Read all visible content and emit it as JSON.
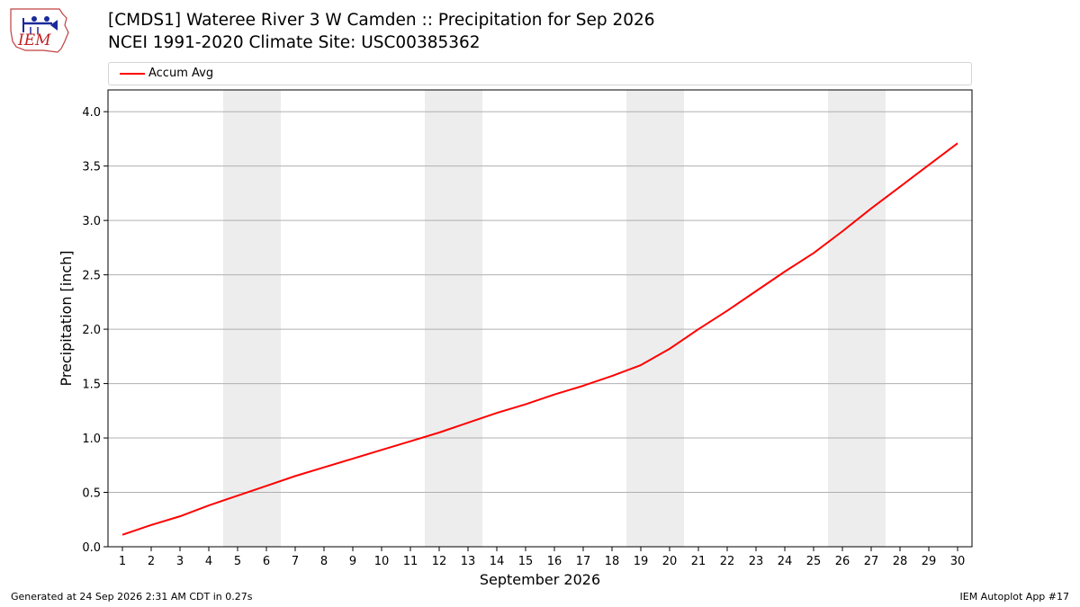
{
  "header": {
    "title_line1": "[CMDS1] Wateree River 3 W Camden :: Precipitation for Sep 2026",
    "title_line2": "NCEI 1991-2020 Climate Site: USC00385362"
  },
  "logo": {
    "text": "IEM",
    "icon": "iem-logo"
  },
  "legend": {
    "label": "Accum Avg",
    "color": "#ff0000"
  },
  "footer": {
    "generated": "Generated at 24 Sep 2026 2:31 AM CDT in 0.27s",
    "app": "IEM Autoplot App #17"
  },
  "colors": {
    "line": "#ff0000",
    "weekend_shade": "#ededed",
    "grid": "#b0b0b0"
  },
  "chart_data": {
    "type": "line",
    "xlabel": "September 2026",
    "ylabel": "Precipitation [inch]",
    "xlim": [
      0.5,
      30.5
    ],
    "ylim": [
      0,
      4.2
    ],
    "x_ticks": [
      1,
      2,
      3,
      4,
      5,
      6,
      7,
      8,
      9,
      10,
      11,
      12,
      13,
      14,
      15,
      16,
      17,
      18,
      19,
      20,
      21,
      22,
      23,
      24,
      25,
      26,
      27,
      28,
      29,
      30
    ],
    "y_ticks": [
      "0.0",
      "0.5",
      "1.0",
      "1.5",
      "2.0",
      "2.5",
      "3.0",
      "3.5",
      "4.0"
    ],
    "grid": "horizontal",
    "legend_position": "top",
    "weekend_bands": [
      [
        5,
        6
      ],
      [
        12,
        13
      ],
      [
        19,
        20
      ],
      [
        26,
        27
      ]
    ],
    "series": [
      {
        "name": "Accum Avg",
        "color": "#ff0000",
        "x": [
          1,
          2,
          3,
          4,
          5,
          6,
          7,
          8,
          9,
          10,
          11,
          12,
          13,
          14,
          15,
          16,
          17,
          18,
          19,
          20,
          21,
          22,
          23,
          24,
          25,
          26,
          27,
          28,
          29,
          30
        ],
        "values": [
          0.11,
          0.2,
          0.28,
          0.38,
          0.47,
          0.56,
          0.65,
          0.73,
          0.81,
          0.89,
          0.97,
          1.05,
          1.14,
          1.23,
          1.31,
          1.4,
          1.48,
          1.57,
          1.67,
          1.82,
          2.0,
          2.17,
          2.35,
          2.53,
          2.7,
          2.9,
          3.11,
          3.31,
          3.51,
          3.71
        ]
      }
    ]
  }
}
